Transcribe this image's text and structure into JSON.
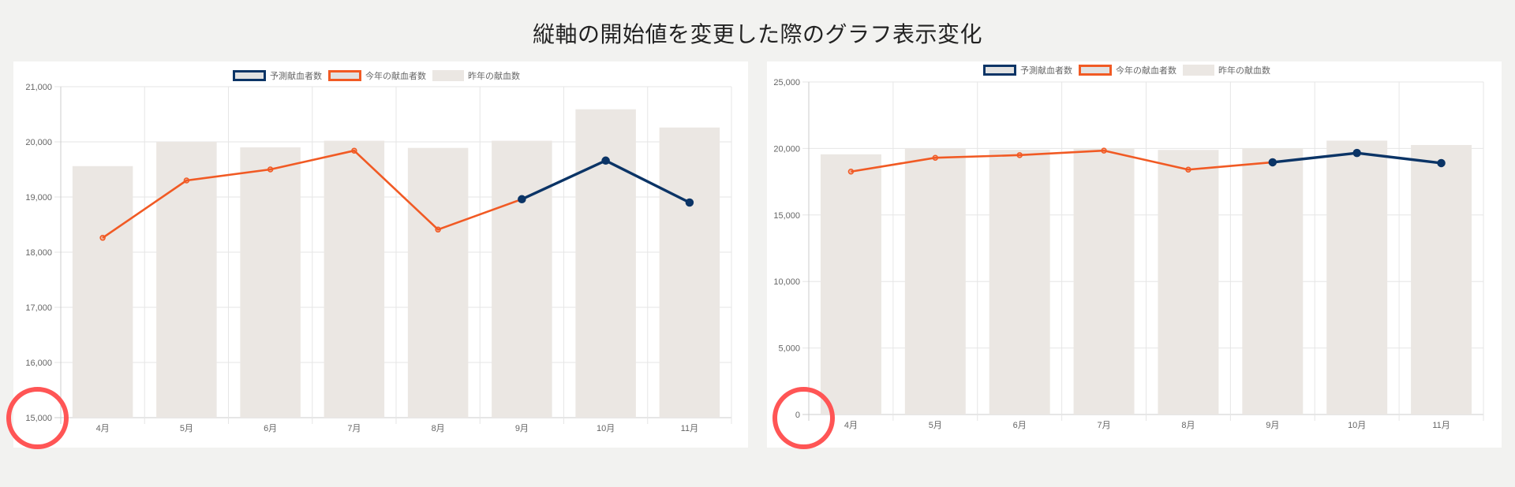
{
  "page": {
    "title": "縦軸の開始値を変更した際のグラフ表示変化",
    "background": "#f2f2f0"
  },
  "colors": {
    "forecast": "#0b3466",
    "this_year": "#f15a24",
    "last_year_bar": "#ebe7e3",
    "grid": "#e6e6e6",
    "axis": "#cccccc",
    "highlight": "#ff5555",
    "legend_fill": "#e2e2e2"
  },
  "legend": [
    {
      "label": "予測献血者数",
      "key": "forecast"
    },
    {
      "label": "今年の献血者数",
      "key": "this_year"
    },
    {
      "label": "昨年の献血数",
      "key": "last_year_bar"
    }
  ],
  "chart_data": [
    {
      "type": "bar+line",
      "title": "",
      "panel": "left",
      "xlabel": "",
      "ylabel": "",
      "categories": [
        "4月",
        "5月",
        "6月",
        "7月",
        "8月",
        "9月",
        "10月",
        "11月"
      ],
      "ylim": [
        15000,
        21000
      ],
      "yticks": [
        15000,
        16000,
        17000,
        18000,
        19000,
        20000,
        21000
      ],
      "ytick_labels": [
        "15,000",
        "16,000",
        "17,000",
        "18,000",
        "19,000",
        "20,000",
        "21,000"
      ],
      "grid": true,
      "legend_position": "top",
      "highlighted_tick": "15,000",
      "series": [
        {
          "name": "昨年の献血数",
          "type": "bar",
          "values": [
            19560,
            20000,
            19900,
            20020,
            19890,
            20020,
            20590,
            20260
          ]
        },
        {
          "name": "今年の献血者数",
          "type": "line",
          "values": [
            18260,
            19300,
            19500,
            19840,
            18410,
            18960,
            null,
            null
          ]
        },
        {
          "name": "予測献血者数",
          "type": "line",
          "values": [
            null,
            null,
            null,
            null,
            null,
            18960,
            19660,
            18900
          ]
        }
      ]
    },
    {
      "type": "bar+line",
      "title": "",
      "panel": "right",
      "xlabel": "",
      "ylabel": "",
      "categories": [
        "4月",
        "5月",
        "6月",
        "7月",
        "8月",
        "9月",
        "10月",
        "11月"
      ],
      "ylim": [
        0,
        25000
      ],
      "yticks": [
        0,
        5000,
        10000,
        15000,
        20000,
        25000
      ],
      "ytick_labels": [
        "0",
        "5,000",
        "10,000",
        "15,000",
        "20,000",
        "25,000"
      ],
      "grid": true,
      "legend_position": "top",
      "highlighted_tick": "0",
      "series": [
        {
          "name": "昨年の献血数",
          "type": "bar",
          "values": [
            19560,
            20000,
            19900,
            20020,
            19890,
            20020,
            20590,
            20260
          ]
        },
        {
          "name": "今年の献血者数",
          "type": "line",
          "values": [
            18260,
            19300,
            19500,
            19840,
            18410,
            18960,
            null,
            null
          ]
        },
        {
          "name": "予測献血者数",
          "type": "line",
          "values": [
            null,
            null,
            null,
            null,
            null,
            18960,
            19660,
            18900
          ]
        }
      ]
    }
  ]
}
